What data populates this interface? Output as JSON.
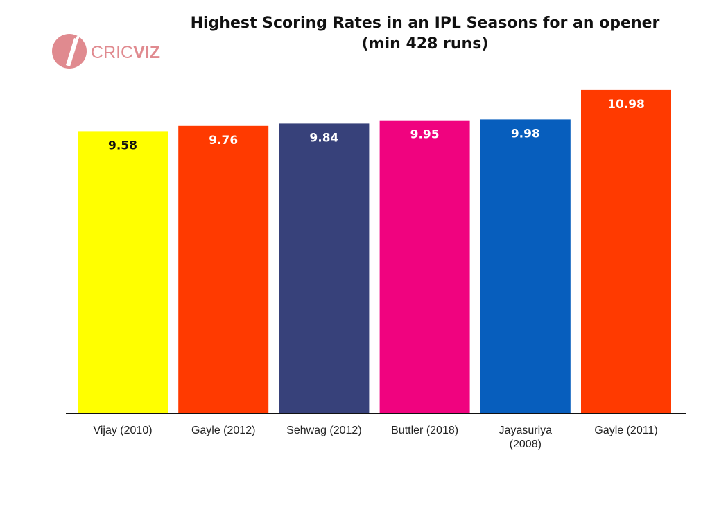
{
  "logo": {
    "name": "CRICVIZ",
    "text_main": "CRIC",
    "text_accent": "VIZ",
    "color": "#e08a8f"
  },
  "chart_data": {
    "type": "bar",
    "title": "Highest Scoring Rates in an IPL Seasons for an opener",
    "subtitle": "(min 428 runs)",
    "xlabel": "",
    "ylabel": "",
    "ylim": [
      0,
      11.4
    ],
    "grid": false,
    "categories": [
      [
        "Vijay (2010)"
      ],
      [
        "Gayle (2012)"
      ],
      [
        "Sehwag (2012)"
      ],
      [
        "Buttler (2018)"
      ],
      [
        "Jayasuriya",
        "(2008)"
      ],
      [
        "Gayle (2011)"
      ]
    ],
    "values": [
      9.58,
      9.76,
      9.84,
      9.95,
      9.98,
      10.98
    ],
    "value_labels": [
      "9.58",
      "9.76",
      "9.84",
      "9.95",
      "9.98",
      "10.98"
    ],
    "colors": [
      "#ffff00",
      "#ff3a00",
      "#37417a",
      "#f0037f",
      "#075ebd",
      "#ff3a00"
    ],
    "label_colors": [
      "#111111",
      "#ffffff",
      "#ffffff",
      "#ffffff",
      "#ffffff",
      "#ffffff"
    ]
  }
}
